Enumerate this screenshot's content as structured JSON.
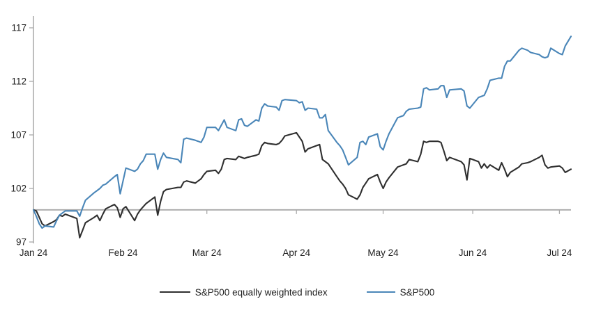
{
  "chart_data": {
    "type": "line",
    "x_axis": {
      "tick_labels": [
        "Jan 24",
        "Feb 24",
        "Mar 24",
        "Apr 24",
        "May 24",
        "Jun 24",
        "Jul 24"
      ],
      "tick_days": [
        0,
        31,
        60,
        91,
        121,
        152,
        182
      ],
      "day_min": 0,
      "day_max": 186,
      "baseline_value": 100
    },
    "y_axis": {
      "ticks": [
        97,
        102,
        107,
        112,
        117
      ],
      "range": [
        97,
        117
      ]
    },
    "legend_position": "bottom",
    "grid": false,
    "colors": {
      "axis": "#a9a9a9",
      "baseline": "#a9a9a9",
      "tick_text": "#1f1f1f"
    },
    "series": [
      {
        "name": "S&P500 equally weighted index",
        "color": "#2f2f2f",
        "points": [
          [
            0,
            100
          ],
          [
            1,
            99.9
          ],
          [
            2,
            99.3
          ],
          [
            3,
            98.7
          ],
          [
            4,
            98.5
          ],
          [
            7,
            98.9
          ],
          [
            8,
            99.1
          ],
          [
            9,
            99.5
          ],
          [
            10,
            99.4
          ],
          [
            11,
            99.6
          ],
          [
            15,
            99.2
          ],
          [
            16,
            97.4
          ],
          [
            17,
            98.1
          ],
          [
            18,
            98.8
          ],
          [
            21,
            99.3
          ],
          [
            22,
            99.5
          ],
          [
            23,
            99.0
          ],
          [
            24,
            99.6
          ],
          [
            25,
            100.1
          ],
          [
            28,
            100.5
          ],
          [
            29,
            100.2
          ],
          [
            30,
            99.3
          ],
          [
            31,
            100.1
          ],
          [
            32,
            100.3
          ],
          [
            35,
            99.0
          ],
          [
            36,
            99.6
          ],
          [
            37,
            100.0
          ],
          [
            38,
            100.3
          ],
          [
            39,
            100.6
          ],
          [
            42,
            101.2
          ],
          [
            43,
            99.5
          ],
          [
            44,
            100.8
          ],
          [
            45,
            101.7
          ],
          [
            46,
            101.9
          ],
          [
            50,
            102.1
          ],
          [
            51,
            102.1
          ],
          [
            52,
            102.6
          ],
          [
            53,
            102.7
          ],
          [
            56,
            102.5
          ],
          [
            57,
            102.7
          ],
          [
            58,
            102.9
          ],
          [
            59,
            103.3
          ],
          [
            60,
            103.6
          ],
          [
            63,
            103.7
          ],
          [
            64,
            103.4
          ],
          [
            65,
            103.8
          ],
          [
            66,
            104.7
          ],
          [
            67,
            104.8
          ],
          [
            70,
            104.7
          ],
          [
            71,
            105.0
          ],
          [
            72,
            104.9
          ],
          [
            73,
            104.8
          ],
          [
            74,
            104.9
          ],
          [
            77,
            105.1
          ],
          [
            78,
            105.2
          ],
          [
            79,
            106.0
          ],
          [
            80,
            106.3
          ],
          [
            81,
            106.2
          ],
          [
            84,
            106.1
          ],
          [
            85,
            106.2
          ],
          [
            86,
            106.5
          ],
          [
            87,
            106.9
          ],
          [
            91,
            107.2
          ],
          [
            92,
            106.8
          ],
          [
            93,
            106.4
          ],
          [
            94,
            105.4
          ],
          [
            95,
            105.7
          ],
          [
            98,
            106.0
          ],
          [
            99,
            106.1
          ],
          [
            100,
            104.7
          ],
          [
            101,
            104.5
          ],
          [
            102,
            104.3
          ],
          [
            105,
            103.1
          ],
          [
            106,
            102.7
          ],
          [
            107,
            102.4
          ],
          [
            108,
            102.0
          ],
          [
            109,
            101.4
          ],
          [
            112,
            101.0
          ],
          [
            113,
            101.4
          ],
          [
            114,
            102.1
          ],
          [
            115,
            102.5
          ],
          [
            116,
            102.9
          ],
          [
            119,
            103.3
          ],
          [
            120,
            102.6
          ],
          [
            121,
            102.0
          ],
          [
            122,
            102.6
          ],
          [
            123,
            103.0
          ],
          [
            126,
            104.0
          ],
          [
            127,
            104.1
          ],
          [
            128,
            104.2
          ],
          [
            129,
            104.3
          ],
          [
            130,
            104.7
          ],
          [
            133,
            104.5
          ],
          [
            134,
            105.2
          ],
          [
            135,
            106.4
          ],
          [
            136,
            106.3
          ],
          [
            137,
            106.4
          ],
          [
            140,
            106.4
          ],
          [
            141,
            106.3
          ],
          [
            142,
            105.5
          ],
          [
            143,
            104.6
          ],
          [
            144,
            104.9
          ],
          [
            148,
            104.5
          ],
          [
            149,
            104.2
          ],
          [
            150,
            102.8
          ],
          [
            151,
            104.8
          ],
          [
            154,
            104.5
          ],
          [
            155,
            103.9
          ],
          [
            156,
            104.3
          ],
          [
            157,
            103.9
          ],
          [
            158,
            104.2
          ],
          [
            161,
            103.7
          ],
          [
            162,
            104.4
          ],
          [
            163,
            103.8
          ],
          [
            164,
            103.1
          ],
          [
            165,
            103.5
          ],
          [
            168,
            104.0
          ],
          [
            169,
            104.3
          ],
          [
            171,
            104.4
          ],
          [
            172,
            104.5
          ],
          [
            175,
            104.9
          ],
          [
            176,
            105.1
          ],
          [
            177,
            104.2
          ],
          [
            178,
            103.9
          ],
          [
            179,
            104.0
          ],
          [
            182,
            104.1
          ],
          [
            183,
            103.9
          ],
          [
            184,
            103.5
          ],
          [
            186,
            103.8
          ]
        ]
      },
      {
        "name": "S&P500",
        "color": "#4a86b8",
        "points": [
          [
            0,
            100
          ],
          [
            1,
            99.4
          ],
          [
            2,
            98.7
          ],
          [
            3,
            98.3
          ],
          [
            4,
            98.5
          ],
          [
            7,
            98.4
          ],
          [
            8,
            99.0
          ],
          [
            9,
            99.5
          ],
          [
            10,
            99.7
          ],
          [
            11,
            99.9
          ],
          [
            15,
            99.9
          ],
          [
            16,
            99.4
          ],
          [
            17,
            100.2
          ],
          [
            18,
            100.9
          ],
          [
            21,
            101.6
          ],
          [
            22,
            101.8
          ],
          [
            23,
            102.0
          ],
          [
            24,
            102.3
          ],
          [
            25,
            102.4
          ],
          [
            28,
            103.1
          ],
          [
            29,
            103.3
          ],
          [
            30,
            101.5
          ],
          [
            31,
            102.7
          ],
          [
            32,
            103.9
          ],
          [
            35,
            103.6
          ],
          [
            36,
            103.8
          ],
          [
            37,
            104.3
          ],
          [
            38,
            104.6
          ],
          [
            39,
            105.2
          ],
          [
            42,
            105.2
          ],
          [
            43,
            103.8
          ],
          [
            44,
            104.7
          ],
          [
            45,
            105.3
          ],
          [
            46,
            104.9
          ],
          [
            50,
            104.7
          ],
          [
            51,
            104.4
          ],
          [
            52,
            106.6
          ],
          [
            53,
            106.7
          ],
          [
            56,
            106.5
          ],
          [
            57,
            106.4
          ],
          [
            58,
            106.3
          ],
          [
            59,
            106.8
          ],
          [
            60,
            107.7
          ],
          [
            63,
            107.7
          ],
          [
            64,
            107.4
          ],
          [
            65,
            107.9
          ],
          [
            66,
            108.4
          ],
          [
            67,
            107.7
          ],
          [
            70,
            107.4
          ],
          [
            71,
            108.4
          ],
          [
            72,
            108.5
          ],
          [
            73,
            107.9
          ],
          [
            74,
            107.8
          ],
          [
            77,
            108.4
          ],
          [
            78,
            108.3
          ],
          [
            79,
            109.5
          ],
          [
            80,
            109.9
          ],
          [
            81,
            109.7
          ],
          [
            84,
            109.6
          ],
          [
            85,
            109.3
          ],
          [
            86,
            110.2
          ],
          [
            87,
            110.3
          ],
          [
            91,
            110.2
          ],
          [
            92,
            110.0
          ],
          [
            93,
            110.1
          ],
          [
            94,
            109.3
          ],
          [
            95,
            109.5
          ],
          [
            98,
            109.4
          ],
          [
            99,
            108.6
          ],
          [
            100,
            108.6
          ],
          [
            101,
            108.9
          ],
          [
            102,
            107.4
          ],
          [
            105,
            106.3
          ],
          [
            106,
            106.0
          ],
          [
            107,
            105.6
          ],
          [
            108,
            104.9
          ],
          [
            109,
            104.2
          ],
          [
            112,
            104.9
          ],
          [
            113,
            106.3
          ],
          [
            114,
            106.4
          ],
          [
            115,
            106.1
          ],
          [
            116,
            106.8
          ],
          [
            119,
            107.1
          ],
          [
            120,
            105.9
          ],
          [
            121,
            105.6
          ],
          [
            122,
            106.4
          ],
          [
            123,
            107.1
          ],
          [
            126,
            108.6
          ],
          [
            127,
            108.7
          ],
          [
            128,
            108.8
          ],
          [
            129,
            109.2
          ],
          [
            130,
            109.4
          ],
          [
            133,
            109.5
          ],
          [
            134,
            109.6
          ],
          [
            135,
            111.3
          ],
          [
            136,
            111.4
          ],
          [
            137,
            111.2
          ],
          [
            140,
            111.3
          ],
          [
            141,
            111.6
          ],
          [
            142,
            111.6
          ],
          [
            143,
            110.5
          ],
          [
            144,
            111.2
          ],
          [
            148,
            111.3
          ],
          [
            149,
            111.1
          ],
          [
            150,
            109.7
          ],
          [
            151,
            109.5
          ],
          [
            154,
            110.5
          ],
          [
            155,
            110.6
          ],
          [
            156,
            110.7
          ],
          [
            157,
            111.3
          ],
          [
            158,
            112.1
          ],
          [
            161,
            112.3
          ],
          [
            162,
            112.3
          ],
          [
            163,
            113.4
          ],
          [
            164,
            113.9
          ],
          [
            165,
            113.9
          ],
          [
            168,
            114.9
          ],
          [
            169,
            115.1
          ],
          [
            171,
            114.9
          ],
          [
            172,
            114.7
          ],
          [
            175,
            114.5
          ],
          [
            176,
            114.3
          ],
          [
            177,
            114.2
          ],
          [
            178,
            114.3
          ],
          [
            179,
            115.1
          ],
          [
            182,
            114.6
          ],
          [
            183,
            114.5
          ],
          [
            184,
            115.3
          ],
          [
            186,
            116.2
          ]
        ]
      }
    ]
  }
}
